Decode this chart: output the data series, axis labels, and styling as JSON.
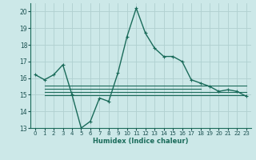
{
  "xlabel": "Humidex (Indice chaleur)",
  "ylabel": "",
  "background_color": "#cce8e8",
  "grid_color": "#b0d0d0",
  "line_color": "#1a6b5a",
  "x_data": [
    0,
    1,
    2,
    3,
    4,
    5,
    6,
    7,
    8,
    9,
    10,
    11,
    12,
    13,
    14,
    15,
    16,
    17,
    18,
    19,
    20,
    21,
    22,
    23
  ],
  "y_main": [
    16.2,
    15.9,
    16.2,
    16.8,
    15.0,
    13.0,
    13.4,
    14.8,
    14.6,
    16.3,
    18.5,
    20.2,
    18.7,
    17.8,
    17.3,
    17.3,
    17.0,
    15.9,
    15.7,
    15.5,
    15.2,
    15.3,
    15.2,
    14.9
  ],
  "hlines": [
    {
      "y": 15.55,
      "xstart": 1,
      "xend": 23
    },
    {
      "y": 15.35,
      "xstart": 1,
      "xend": 18
    },
    {
      "y": 15.15,
      "xstart": 1,
      "xend": 23
    },
    {
      "y": 14.95,
      "xstart": 1,
      "xend": 23
    }
  ],
  "ylim": [
    13,
    20.5
  ],
  "xlim": [
    -0.5,
    23.5
  ],
  "yticks": [
    13,
    14,
    15,
    16,
    17,
    18,
    19,
    20
  ],
  "xticks": [
    0,
    1,
    2,
    3,
    4,
    5,
    6,
    7,
    8,
    9,
    10,
    11,
    12,
    13,
    14,
    15,
    16,
    17,
    18,
    19,
    20,
    21,
    22,
    23
  ]
}
